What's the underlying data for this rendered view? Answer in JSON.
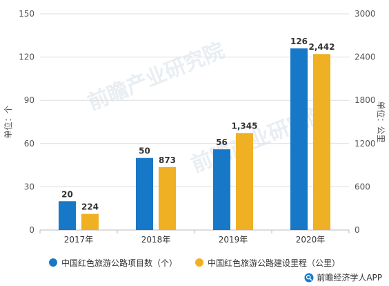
{
  "chart_data": {
    "type": "bar",
    "categories": [
      "2017年",
      "2018年",
      "2019年",
      "2020年"
    ],
    "series": [
      {
        "name": "中国红色旅游公路项目数（个）",
        "values": [
          20,
          50,
          56,
          126
        ],
        "labels": [
          "20",
          "50",
          "56",
          "126"
        ],
        "axis": "left",
        "color": "#1878c8"
      },
      {
        "name": "中国红色旅游公路建设里程（公里）",
        "values": [
          224,
          873,
          1345,
          2442
        ],
        "labels": [
          "224",
          "873",
          "1,345",
          "2,442"
        ],
        "axis": "right",
        "color": "#f0b023"
      }
    ],
    "ylabel_left": "单位：个",
    "ylabel_right": "单位：公里",
    "ylim_left": [
      0,
      150
    ],
    "ylim_right": [
      0,
      3000
    ],
    "yticks_left": [
      "0",
      "30",
      "60",
      "90",
      "120",
      "150"
    ],
    "yticks_right": [
      "0",
      "600",
      "1200",
      "1800",
      "2400",
      "3000"
    ],
    "grid": true,
    "legend_position": "bottom"
  },
  "watermark": "前瞻产业研究院",
  "source": "前瞻经济学人APP",
  "source_icon": "search-icon"
}
